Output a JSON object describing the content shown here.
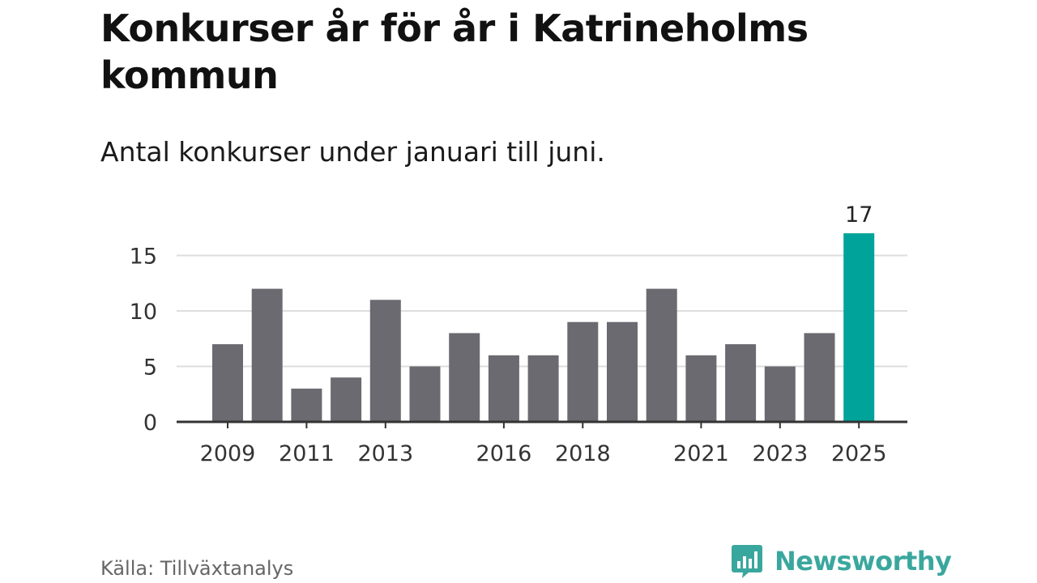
{
  "title": "Konkurser år för år i Katrineholms kommun",
  "subtitle": "Antal konkurser under januari till juni.",
  "source": "Källa: Tillväxtanalys",
  "logo": {
    "name": "Newsworthy",
    "icon": "bar-chart-speech-bubble-icon",
    "color": "#3aa79e"
  },
  "chart_data": {
    "type": "bar",
    "x": [
      2009,
      2010,
      2011,
      2012,
      2013,
      2014,
      2015,
      2016,
      2017,
      2018,
      2019,
      2020,
      2021,
      2022,
      2023,
      2024,
      2025
    ],
    "values": [
      7,
      12,
      3,
      4,
      11,
      5,
      8,
      6,
      6,
      9,
      9,
      12,
      6,
      7,
      5,
      8,
      17
    ],
    "x_tick_labels": [
      "2009",
      "2011",
      "2013",
      "2016",
      "2018",
      "2021",
      "2023",
      "2025"
    ],
    "y_ticks": [
      0,
      5,
      10,
      15
    ],
    "ylim": [
      0,
      17
    ],
    "grid": true,
    "bar_color": "#6b6a70",
    "highlight_color": "#00a39a",
    "highlight_index": 16,
    "data_labels": [
      {
        "index": 16,
        "text": "17"
      }
    ],
    "xlabel": "",
    "ylabel": ""
  }
}
